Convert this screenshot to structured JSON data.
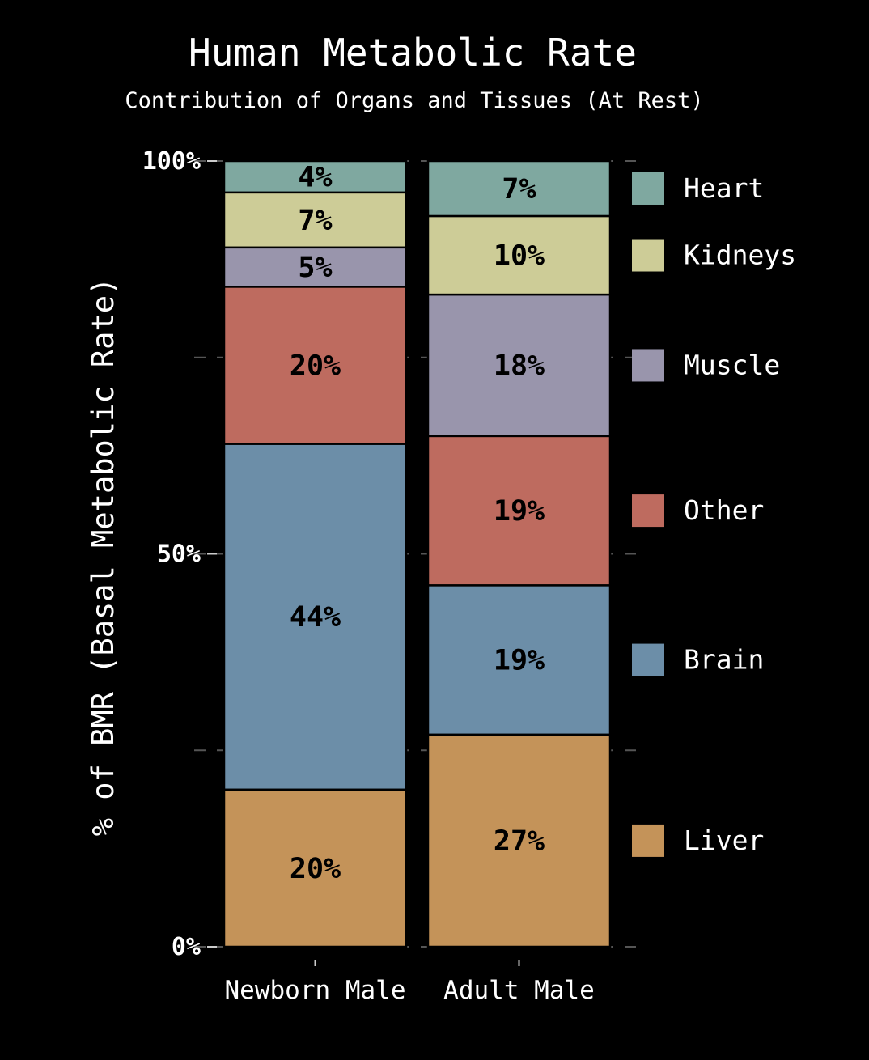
{
  "chart_data": {
    "type": "bar",
    "stacked": true,
    "title": "Human Metabolic Rate",
    "subtitle": "Contribution of Organs and Tissues (At Rest)",
    "ylabel": "% of BMR (Basal Metabolic Rate)",
    "xlabel": "",
    "ylim": [
      0,
      100
    ],
    "yticks": [
      "0%",
      "50%",
      "100%"
    ],
    "grid": true,
    "legend_position": "right",
    "categories": [
      "Newborn Male",
      "Adult Male"
    ],
    "series": [
      {
        "name": "Liver",
        "values": [
          20,
          27
        ],
        "labels": [
          "20%",
          "27%"
        ],
        "color": "#c49359"
      },
      {
        "name": "Brain",
        "values": [
          44,
          19
        ],
        "labels": [
          "44%",
          "19%"
        ],
        "color": "#6c8ea8"
      },
      {
        "name": "Other",
        "values": [
          20,
          19
        ],
        "labels": [
          "20%",
          "19%"
        ],
        "color": "#be6b5f"
      },
      {
        "name": "Muscle",
        "values": [
          5,
          18
        ],
        "labels": [
          "5%",
          "18%"
        ],
        "color": "#9995ac"
      },
      {
        "name": "Kidneys",
        "values": [
          7,
          10
        ],
        "labels": [
          "7%",
          "10%"
        ],
        "color": "#cdcc97"
      },
      {
        "name": "Heart",
        "values": [
          4,
          7
        ],
        "labels": [
          "4%",
          "7%"
        ],
        "color": "#7fa8a0"
      }
    ],
    "legend_order": [
      "Heart",
      "Kidneys",
      "Muscle",
      "Other",
      "Brain",
      "Liver"
    ]
  }
}
